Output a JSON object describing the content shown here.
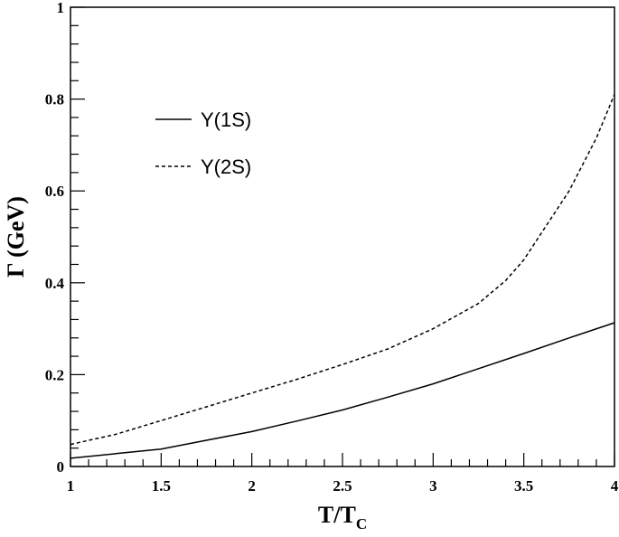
{
  "chart_data": {
    "type": "line",
    "title": "",
    "xlabel": {
      "main": "T/T",
      "sub": "C"
    },
    "ylabel": "Γ (GeV)",
    "xlim": [
      1,
      4
    ],
    "ylim": [
      0,
      1
    ],
    "x_ticks": [
      1,
      1.5,
      2,
      2.5,
      3,
      3.5,
      4
    ],
    "x_tick_labels": [
      "1",
      "1.5",
      "2",
      "2.5",
      "3",
      "3.5",
      "4"
    ],
    "y_ticks": [
      0,
      0.2,
      0.4,
      0.6,
      0.8,
      1
    ],
    "y_tick_labels": [
      "0",
      "0.2",
      "0.4",
      "0.6",
      "0.8",
      "1"
    ],
    "grid": false,
    "legend_position": "upper-left",
    "series": [
      {
        "name": "Υ(1S)",
        "style": "solid",
        "color": "#000000",
        "x": [
          1.0,
          1.25,
          1.5,
          1.75,
          2.0,
          2.25,
          2.5,
          2.75,
          3.0,
          3.25,
          3.5,
          3.75,
          4.0
        ],
        "y": [
          0.018,
          0.028,
          0.038,
          0.057,
          0.076,
          0.099,
          0.123,
          0.151,
          0.18,
          0.213,
          0.246,
          0.28,
          0.313
        ]
      },
      {
        "name": "Υ(2S)",
        "style": "dashed",
        "color": "#000000",
        "x": [
          1.0,
          1.25,
          1.5,
          1.75,
          2.0,
          2.25,
          2.5,
          2.75,
          3.0,
          3.25,
          3.4,
          3.5,
          3.6,
          3.75,
          3.9,
          4.0
        ],
        "y": [
          0.048,
          0.07,
          0.1,
          0.13,
          0.16,
          0.19,
          0.222,
          0.256,
          0.3,
          0.355,
          0.405,
          0.45,
          0.51,
          0.6,
          0.715,
          0.81
        ]
      }
    ]
  }
}
